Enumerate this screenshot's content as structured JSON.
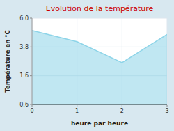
{
  "chart_data": {
    "type": "area",
    "title": "Evolution de la température",
    "x_label": "heure par heure",
    "y_label": "Température en °C",
    "x": [
      0,
      1,
      2,
      3
    ],
    "values": [
      5.05,
      4.2,
      2.6,
      4.75
    ],
    "xlim": [
      0,
      3
    ],
    "ylim": [
      -0.6,
      6.0
    ],
    "xticks": [
      0,
      1,
      2,
      3
    ],
    "yticks": [
      {
        "value": -0.6,
        "label": "−0.6"
      },
      1.6,
      3.8,
      {
        "value": 6.0,
        "label": "6.0"
      }
    ],
    "color": "#8dd4e8",
    "grid": true
  }
}
